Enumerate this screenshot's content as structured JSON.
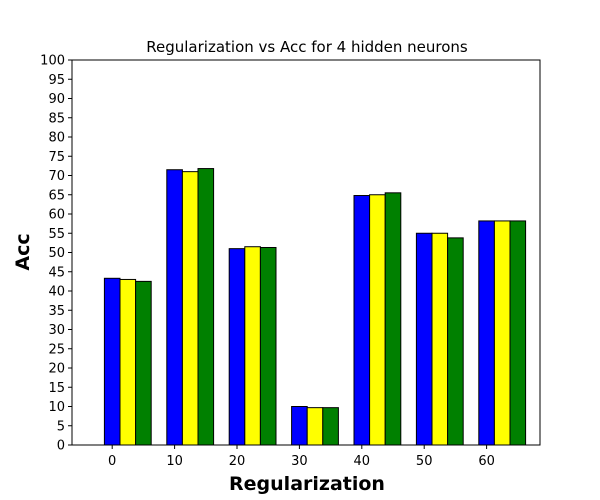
{
  "chart_data": {
    "type": "bar",
    "title": "Regularization vs Acc for 4 hidden neurons",
    "xlabel": "Regularization",
    "ylabel": "Acc",
    "categories": [
      "0",
      "10",
      "20",
      "30",
      "40",
      "50",
      "60"
    ],
    "ylim": [
      0,
      100
    ],
    "yticks": [
      "0",
      "5",
      "10",
      "15",
      "20",
      "25",
      "30",
      "35",
      "40",
      "45",
      "50",
      "55",
      "60",
      "65",
      "70",
      "75",
      "80",
      "85",
      "90",
      "95",
      "100"
    ],
    "grid": false,
    "legend": "none",
    "series": [
      {
        "color": "#0000ff",
        "values": [
          43.3,
          71.5,
          51.0,
          10.0,
          64.8,
          55.0,
          58.2
        ]
      },
      {
        "color": "#ffff00",
        "values": [
          43.0,
          71.0,
          51.5,
          9.7,
          65.0,
          55.0,
          58.2
        ]
      },
      {
        "color": "#008000",
        "values": [
          42.5,
          71.8,
          51.3,
          9.7,
          65.5,
          53.8,
          58.2
        ]
      }
    ]
  }
}
